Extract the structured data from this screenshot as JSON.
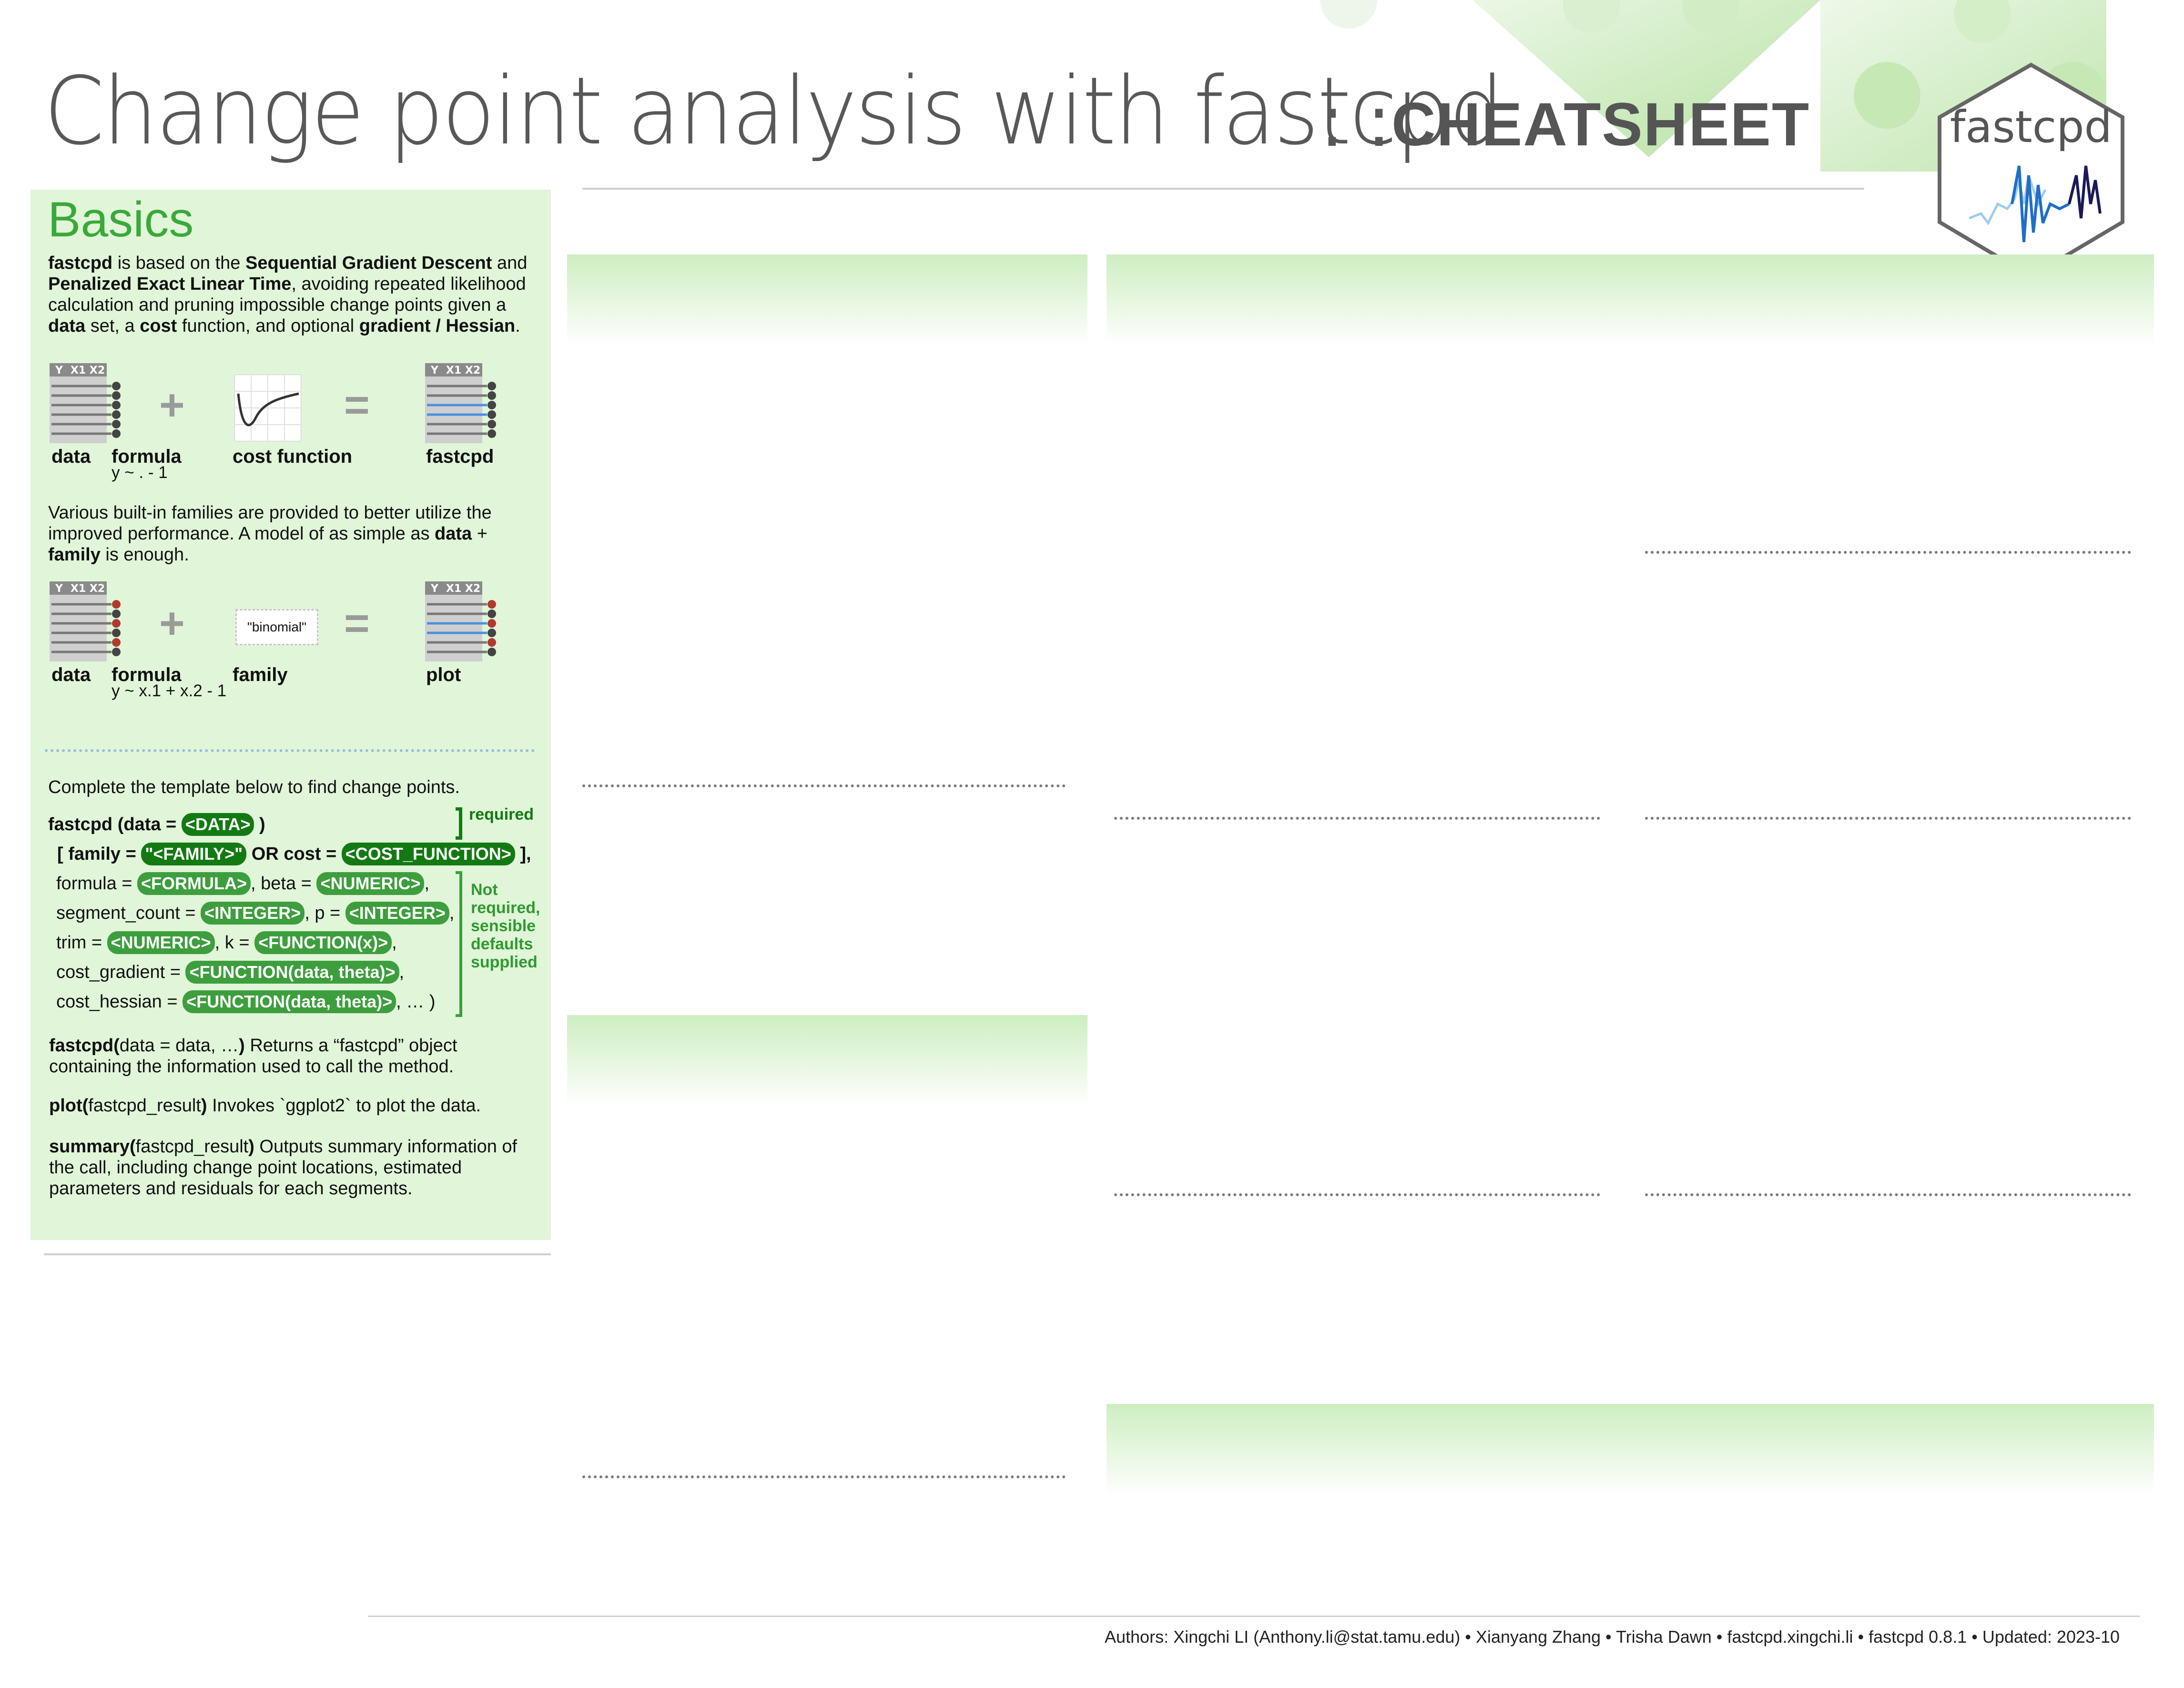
{
  "header": {
    "title": "Change point analysis with fastcpd",
    "separator": ": :",
    "tag": "CHEATSHEET",
    "logo_text": "fastcpd"
  },
  "basics": {
    "title": "Basics",
    "intro": {
      "b1": "fastcpd",
      "t1": " is based on the ",
      "b2": "Sequential Gradient Descent",
      "t2": " and ",
      "b3": "Penalized Exact Linear Time",
      "t3": ", avoiding repeated likelihood calculation and pruning impossible change points given a ",
      "b4": "data",
      "t4": " set, a ",
      "b5": "cost",
      "t5": " function, and optional ",
      "b6": "gradient / Hessian",
      "t6": "."
    },
    "diagram1": {
      "table_headers": [
        "Y",
        "X1",
        "X2"
      ],
      "label_data": "data",
      "label_formula": "formula",
      "formula_text": "y ~ . - 1",
      "label_cost": "cost function",
      "label_result": "fastcpd",
      "plus": "+",
      "equals": "="
    },
    "families_text": {
      "t1": "Various built-in families are provided to better utilize the improved performance. A model of as simple as ",
      "b1": "data",
      "t2": " + ",
      "b2": "family",
      "t3": " is enough."
    },
    "diagram2": {
      "table_headers": [
        "Y",
        "X1",
        "X2"
      ],
      "family_value": "\"binomial\"",
      "label_data": "data",
      "label_formula": "formula",
      "formula_text": "y ~ x.1 + x.2 - 1",
      "label_family": "family",
      "label_result": "plot",
      "plus": "+",
      "equals": "="
    },
    "template_intro": "Complete the template below to find change points.",
    "template": {
      "l1_pre": "fastcpd (data = ",
      "l1_pill": "<DATA>",
      "l1_post": " )",
      "l2_pre": "[ family = ",
      "l2_pill1": "\"<FAMILY>\"",
      "l2_mid": " OR cost = ",
      "l2_pill2": "<COST_FUNCTION>",
      "l2_post": " ],",
      "l3_pre": "formula = ",
      "l3_pill1": "<FORMULA>",
      "l3_mid": ", beta = ",
      "l3_pill2": "<NUMERIC>",
      "l3_post": ",",
      "l4_pre": "segment_count = ",
      "l4_pill1": "<INTEGER>",
      "l4_mid": ", p = ",
      "l4_pill2": "<INTEGER>",
      "l4_post": ",",
      "l5_pre": "trim = ",
      "l5_pill1": "<NUMERIC>",
      "l5_mid": ", k = ",
      "l5_pill2": "<FUNCTION(x)>",
      "l5_post": ",",
      "l6_pre": "cost_gradient = ",
      "l6_pill": "<FUNCTION(data, theta)>",
      "l6_post": ",",
      "l7_pre": "cost_hessian = ",
      "l7_pill": "<FUNCTION(data, theta)>",
      "l7_post": ", … )",
      "required": "required",
      "not_required": [
        "Not",
        "required,",
        "sensible",
        "defaults",
        "supplied"
      ]
    },
    "fn_fastcpd": {
      "name": "fastcpd(",
      "args": "data = data, …",
      "close": ")",
      "desc": " Returns a “fastcpd” object containing the information used to call the method."
    },
    "fn_plot": {
      "name": "plot(",
      "args": "fastcpd_result",
      "close": ")",
      "desc": " Invokes `ggplot2` to plot the data."
    },
    "fn_summary": {
      "name": "summary(",
      "args": "fastcpd_result",
      "close": ")",
      "desc": " Outputs summary information of the call, including change point locations, estimated parameters and residuals for each segments."
    }
  },
  "footer": "Authors: Xingchi LI (Anthony.li@stat.tamu.edu)  •  Xianyang Zhang  •  Trisha Dawn   •   fastcpd.xingchi.li  •  fastcpd  0.8.1  •  Updated:  2023-10",
  "colors": {
    "accent": "#3aa93a",
    "pill": "#3d9e3d",
    "pill_dark": "#137a13",
    "panel": "#e1f5d9",
    "title": "#585858"
  },
  "icons": [
    "hexagon-logo-icon",
    "cost-curve-icon",
    "data-table-icon"
  ]
}
